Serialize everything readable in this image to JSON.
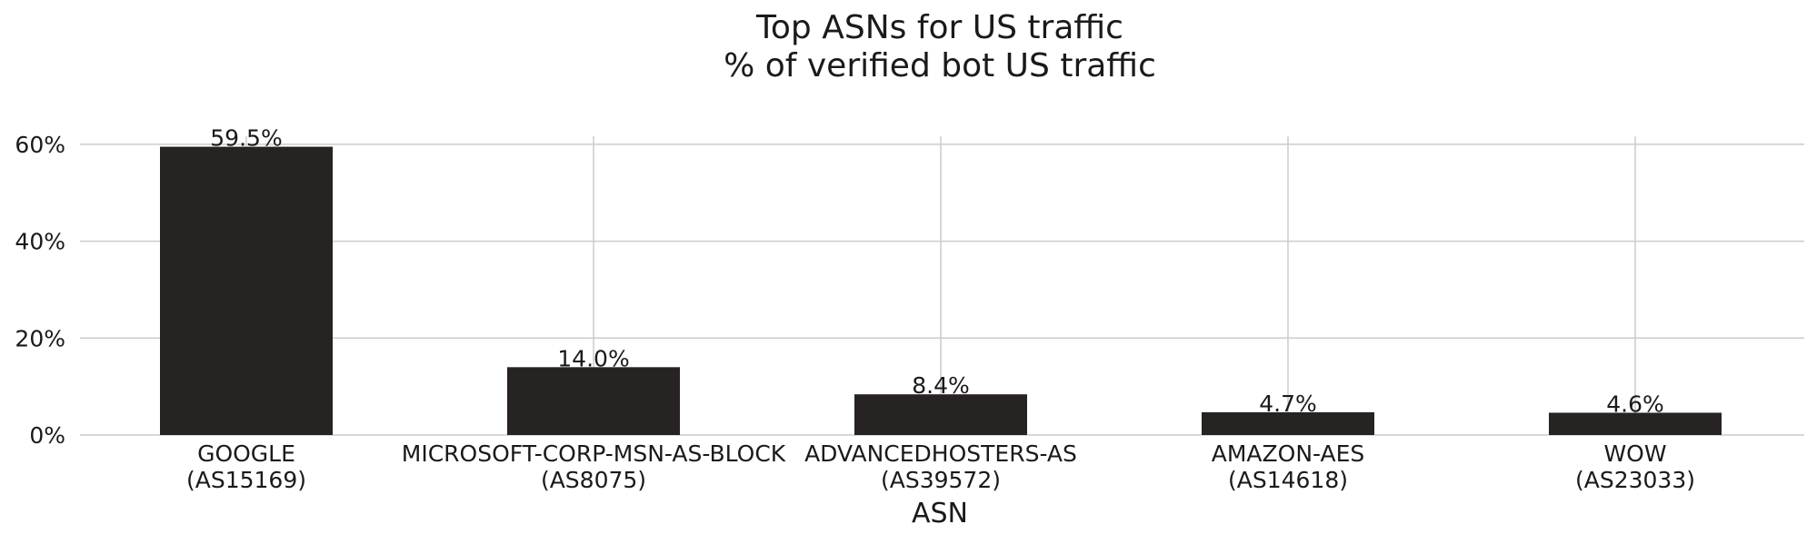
{
  "chart_data": {
    "type": "bar",
    "title": "Top ASNs for US traffic",
    "subtitle": "% of verified bot US traffic",
    "xlabel": "ASN",
    "ylabel": "",
    "ylim": [
      0,
      62
    ],
    "yticks": [
      {
        "value": 0,
        "label": "0%"
      },
      {
        "value": 20,
        "label": "20%"
      },
      {
        "value": 40,
        "label": "40%"
      },
      {
        "value": 60,
        "label": "60%"
      }
    ],
    "categories": [
      {
        "name": "GOOGLE",
        "asn": "(AS15169)"
      },
      {
        "name": "MICROSOFT-CORP-MSN-AS-BLOCK",
        "asn": "(AS8075)"
      },
      {
        "name": "ADVANCEDHOSTERS-AS",
        "asn": "(AS39572)"
      },
      {
        "name": "AMAZON-AES",
        "asn": "(AS14618)"
      },
      {
        "name": "WOW",
        "asn": "(AS23033)"
      }
    ],
    "values": [
      59.5,
      14.0,
      8.4,
      4.7,
      4.6
    ],
    "data_labels": [
      "59.5%",
      "14.0%",
      "8.4%",
      "4.7%",
      "4.6%"
    ],
    "grid": true,
    "legend": "none",
    "colors": {
      "bar": "#262322",
      "grid": "#cccccc",
      "text": "#1a1a1a"
    }
  }
}
